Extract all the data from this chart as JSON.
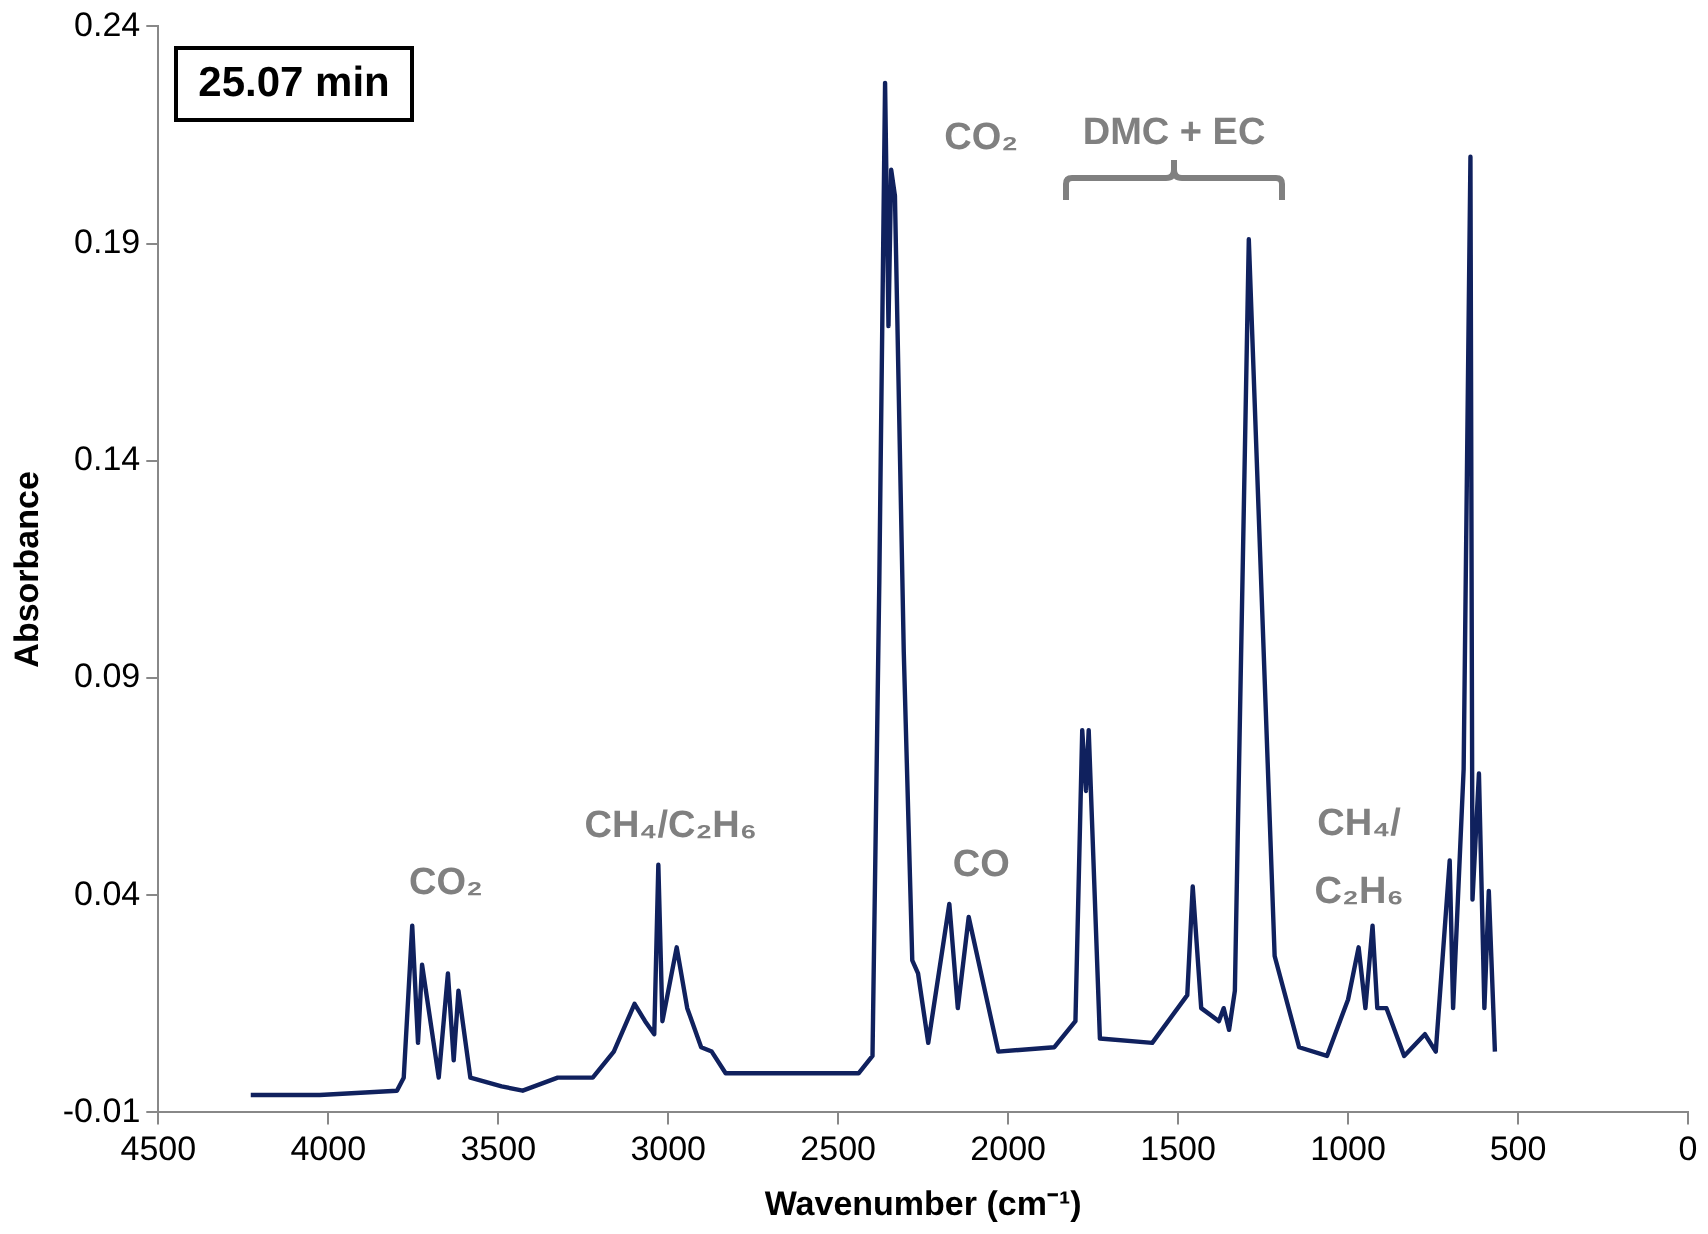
{
  "chart_data": {
    "type": "line",
    "xlabel": "Wavenumber (cm⁻¹)",
    "ylabel": "Absorbance",
    "xlim": [
      4500,
      0
    ],
    "xticks": [
      4500,
      4000,
      3500,
      3000,
      2500,
      2000,
      1500,
      1000,
      500,
      0
    ],
    "ylim": [
      -0.01,
      0.24
    ],
    "yticks": [
      -0.01,
      0.04,
      0.09,
      0.14,
      0.19,
      0.24
    ],
    "grid": false,
    "legend": false,
    "series": [
      {
        "color": "#10215e",
        "x": [
          4228,
          4025,
          3798,
          3778,
          3753,
          3736,
          3724,
          3675,
          3648,
          3631,
          3617,
          3582,
          3490,
          3428,
          3325,
          3222,
          3160,
          3099,
          3068,
          3041,
          3029,
          3017,
          2975,
          2944,
          2903,
          2872,
          2831,
          2440,
          2399,
          2379,
          2362,
          2352,
          2344,
          2333,
          2307,
          2282,
          2265,
          2235,
          2173,
          2148,
          2116,
          2029,
          1864,
          1802,
          1782,
          1771,
          1763,
          1730,
          1576,
          1473,
          1457,
          1432,
          1380,
          1366,
          1350,
          1333,
          1292,
          1216,
          1144,
          1062,
          1000,
          969,
          949,
          928,
          914,
          887,
          835,
          774,
          742,
          701,
          691,
          660,
          640,
          634,
          615,
          599,
          586,
          568
        ],
        "values": [
          -0.006,
          -0.006,
          -0.005,
          -0.002,
          0.033,
          0.006,
          0.024,
          -0.002,
          0.022,
          0.002,
          0.018,
          -0.002,
          -0.004,
          -0.005,
          -0.002,
          -0.002,
          0.004,
          0.015,
          0.011,
          0.008,
          0.047,
          0.011,
          0.028,
          0.014,
          0.005,
          0.004,
          -0.001,
          -0.001,
          0.003,
          0.112,
          0.227,
          0.171,
          0.207,
          0.201,
          0.096,
          0.025,
          0.022,
          0.006,
          0.038,
          0.014,
          0.035,
          0.004,
          0.005,
          0.011,
          0.078,
          0.064,
          0.078,
          0.007,
          0.006,
          0.017,
          0.042,
          0.014,
          0.011,
          0.014,
          0.009,
          0.018,
          0.191,
          0.026,
          0.005,
          0.003,
          0.016,
          0.028,
          0.014,
          0.033,
          0.014,
          0.014,
          0.003,
          0.008,
          0.004,
          0.048,
          0.014,
          0.069,
          0.21,
          0.039,
          0.068,
          0.014,
          0.041,
          0.004
        ]
      }
    ],
    "annotations": [
      "25.07 min",
      "CO₂",
      "CH₄/C₂H₆",
      "CO",
      "CO₂",
      "DMC + EC",
      "CH₄/\nC₂H₆"
    ]
  }
}
